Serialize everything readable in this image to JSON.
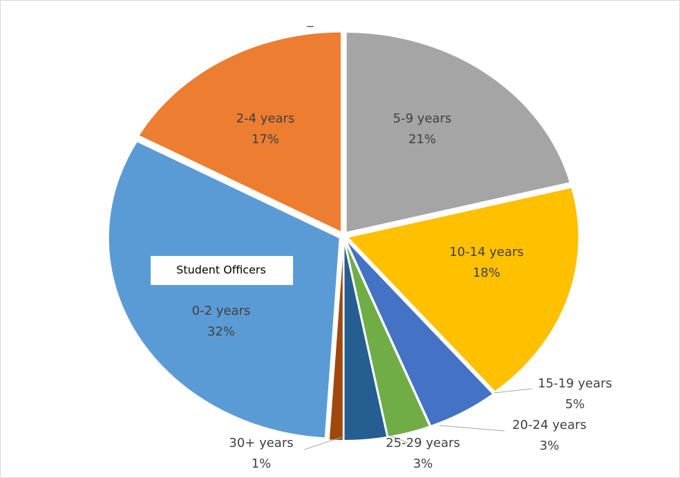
{
  "chart_data": {
    "type": "pie",
    "title": "_",
    "categories": [
      "5-9 years",
      "10-14 years",
      "15-19 years",
      "20-24 years",
      "25-29 years",
      "30+ years",
      "0-2 years",
      "2-4 years"
    ],
    "values": [
      21,
      18,
      5,
      3,
      3,
      1,
      32,
      17
    ],
    "value_labels": [
      "21%",
      "18%",
      "5%",
      "3%",
      "3%",
      "1%",
      "32%",
      "17%"
    ],
    "colors": [
      "#a5a5a5",
      "#ffc000",
      "#4472c4",
      "#70ad47",
      "#255e91",
      "#9e480e",
      "#5b9bd5",
      "#ed7d31"
    ],
    "annotation": "Student Officers"
  }
}
